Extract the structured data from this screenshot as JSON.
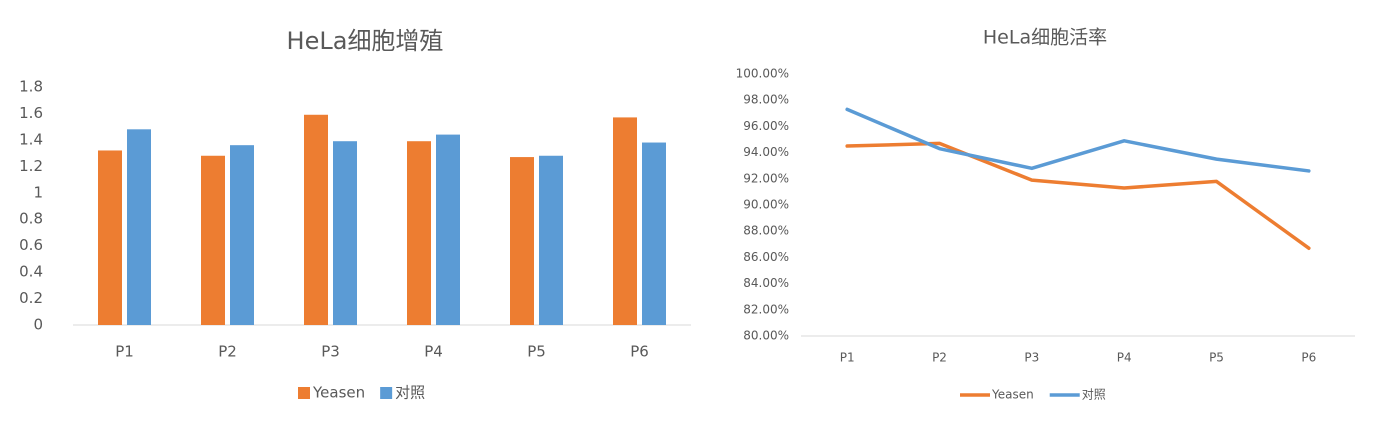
{
  "chart_data": [
    {
      "type": "bar",
      "title": "HeLa细胞增殖",
      "categories": [
        "P1",
        "P2",
        "P3",
        "P4",
        "P5",
        "P6"
      ],
      "series": [
        {
          "name": "Yeasen",
          "color": "#ed7d31",
          "values": [
            1.32,
            1.28,
            1.59,
            1.39,
            1.27,
            1.57
          ]
        },
        {
          "name": "对照",
          "color": "#5b9bd5",
          "values": [
            1.48,
            1.36,
            1.39,
            1.44,
            1.28,
            1.38
          ]
        }
      ],
      "ylim": [
        0,
        1.8
      ],
      "yticks": [
        0,
        0.2,
        0.4,
        0.6,
        0.8,
        1,
        1.2,
        1.4,
        1.6,
        1.8
      ],
      "grid": false,
      "legend": "bottom"
    },
    {
      "type": "line",
      "title": "HeLa细胞活率",
      "categories": [
        "P1",
        "P2",
        "P3",
        "P4",
        "P5",
        "P6"
      ],
      "series": [
        {
          "name": "Yeasen",
          "color": "#ed7d31",
          "values": [
            94.5,
            94.7,
            91.9,
            91.3,
            91.8,
            86.7
          ]
        },
        {
          "name": "对照",
          "color": "#5b9bd5",
          "values": [
            97.3,
            94.3,
            92.8,
            94.9,
            93.5,
            92.6
          ]
        }
      ],
      "ylim": [
        80,
        100
      ],
      "yticks": [
        {
          "value": 80,
          "label": "80.00%"
        },
        {
          "value": 82,
          "label": "82.00%"
        },
        {
          "value": 84,
          "label": "84.00%"
        },
        {
          "value": 86,
          "label": "86.00%"
        },
        {
          "value": 88,
          "label": "88.00%"
        },
        {
          "value": 90,
          "label": "90.00%"
        },
        {
          "value": 92,
          "label": "92.00%"
        },
        {
          "value": 94,
          "label": "94.00%"
        },
        {
          "value": 96,
          "label": "96.00%"
        },
        {
          "value": 98,
          "label": "98.00%"
        },
        {
          "value": 100,
          "label": "100.00%"
        }
      ],
      "grid": false,
      "legend": "bottom"
    }
  ]
}
